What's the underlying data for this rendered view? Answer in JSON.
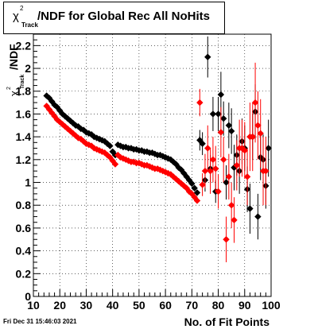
{
  "header": {
    "title_symbol": "χ",
    "title_superscript": "2",
    "title_subscript": "Track",
    "title_text": "/NDF for Global Rec All NoHits"
  },
  "footer": {
    "timestamp": "Fri Dec 31 15:46:03 2021"
  },
  "chart_data": {
    "type": "scatter",
    "title": "χ²_Track/NDF for Global Rec All NoHits",
    "xlabel": "No. of Fit Points",
    "ylabel": "χ²_Track/NDF",
    "ylabel_parts": {
      "symbol": "χ",
      "sup": "2",
      "sub": "Track",
      "rest": "/NDF"
    },
    "xlim": [
      10,
      100
    ],
    "ylim": [
      0,
      2.3
    ],
    "x_ticks": [
      10,
      20,
      30,
      40,
      50,
      60,
      70,
      80,
      90,
      100
    ],
    "y_ticks": [
      0,
      0.2,
      0.4,
      0.6,
      0.8,
      1,
      1.2,
      1.4,
      1.6,
      1.8,
      2,
      2.2
    ],
    "grid": true,
    "legend": "none",
    "series": [
      {
        "color": "#000000",
        "points": [
          {
            "x": 15,
            "y": 1.76,
            "err": 0.01
          },
          {
            "x": 16,
            "y": 1.74,
            "err": 0.01
          },
          {
            "x": 17,
            "y": 1.71,
            "err": 0.01
          },
          {
            "x": 18,
            "y": 1.68,
            "err": 0.01
          },
          {
            "x": 19,
            "y": 1.66,
            "err": 0.01
          },
          {
            "x": 20,
            "y": 1.63,
            "err": 0.01
          },
          {
            "x": 21,
            "y": 1.6,
            "err": 0.01
          },
          {
            "x": 22,
            "y": 1.58,
            "err": 0.01
          },
          {
            "x": 23,
            "y": 1.56,
            "err": 0.01
          },
          {
            "x": 24,
            "y": 1.54,
            "err": 0.01
          },
          {
            "x": 25,
            "y": 1.52,
            "err": 0.01
          },
          {
            "x": 26,
            "y": 1.5,
            "err": 0.01
          },
          {
            "x": 27,
            "y": 1.49,
            "err": 0.01
          },
          {
            "x": 28,
            "y": 1.47,
            "err": 0.01
          },
          {
            "x": 29,
            "y": 1.46,
            "err": 0.01
          },
          {
            "x": 30,
            "y": 1.44,
            "err": 0.01
          },
          {
            "x": 31,
            "y": 1.43,
            "err": 0.01
          },
          {
            "x": 32,
            "y": 1.42,
            "err": 0.01
          },
          {
            "x": 33,
            "y": 1.4,
            "err": 0.01
          },
          {
            "x": 34,
            "y": 1.39,
            "err": 0.01
          },
          {
            "x": 35,
            "y": 1.38,
            "err": 0.01
          },
          {
            "x": 36,
            "y": 1.37,
            "err": 0.01
          },
          {
            "x": 37,
            "y": 1.36,
            "err": 0.01
          },
          {
            "x": 38,
            "y": 1.34,
            "err": 0.01
          },
          {
            "x": 39,
            "y": 1.32,
            "err": 0.01
          },
          {
            "x": 40,
            "y": 1.27,
            "err": 0.01
          },
          {
            "x": 41,
            "y": 1.24,
            "err": 0.01
          },
          {
            "x": 42,
            "y": 1.33,
            "err": 0.01
          },
          {
            "x": 43,
            "y": 1.32,
            "err": 0.01
          },
          {
            "x": 44,
            "y": 1.31,
            "err": 0.01
          },
          {
            "x": 45,
            "y": 1.31,
            "err": 0.01
          },
          {
            "x": 46,
            "y": 1.3,
            "err": 0.01
          },
          {
            "x": 47,
            "y": 1.3,
            "err": 0.01
          },
          {
            "x": 48,
            "y": 1.29,
            "err": 0.01
          },
          {
            "x": 49,
            "y": 1.29,
            "err": 0.01
          },
          {
            "x": 50,
            "y": 1.28,
            "err": 0.01
          },
          {
            "x": 51,
            "y": 1.28,
            "err": 0.01
          },
          {
            "x": 52,
            "y": 1.27,
            "err": 0.01
          },
          {
            "x": 53,
            "y": 1.27,
            "err": 0.01
          },
          {
            "x": 54,
            "y": 1.26,
            "err": 0.01
          },
          {
            "x": 55,
            "y": 1.26,
            "err": 0.01
          },
          {
            "x": 56,
            "y": 1.25,
            "err": 0.01
          },
          {
            "x": 57,
            "y": 1.24,
            "err": 0.01
          },
          {
            "x": 58,
            "y": 1.24,
            "err": 0.01
          },
          {
            "x": 59,
            "y": 1.23,
            "err": 0.01
          },
          {
            "x": 60,
            "y": 1.22,
            "err": 0.01
          },
          {
            "x": 61,
            "y": 1.21,
            "err": 0.01
          },
          {
            "x": 62,
            "y": 1.2,
            "err": 0.01
          },
          {
            "x": 63,
            "y": 1.18,
            "err": 0.01
          },
          {
            "x": 64,
            "y": 1.16,
            "err": 0.01
          },
          {
            "x": 65,
            "y": 1.13,
            "err": 0.01
          },
          {
            "x": 66,
            "y": 1.11,
            "err": 0.01
          },
          {
            "x": 67,
            "y": 1.08,
            "err": 0.01
          },
          {
            "x": 68,
            "y": 1.05,
            "err": 0.01
          },
          {
            "x": 69,
            "y": 1.02,
            "err": 0.015
          },
          {
            "x": 70,
            "y": 0.99,
            "err": 0.015
          },
          {
            "x": 71,
            "y": 0.95,
            "err": 0.02
          },
          {
            "x": 72,
            "y": 0.91,
            "err": 0.02
          },
          {
            "x": 73,
            "y": 1.37,
            "err": 0.09
          },
          {
            "x": 74,
            "y": 1.34,
            "err": 0.1
          },
          {
            "x": 75,
            "y": 1.02,
            "err": 0.1
          },
          {
            "x": 76,
            "y": 2.1,
            "err": 0.18
          },
          {
            "x": 77,
            "y": 1.12,
            "err": 0.12
          },
          {
            "x": 78,
            "y": 1.6,
            "err": 0.15
          },
          {
            "x": 79,
            "y": 0.92,
            "err": 0.1
          },
          {
            "x": 80,
            "y": 1.6,
            "err": 0.15
          },
          {
            "x": 81,
            "y": 1.77,
            "err": 0.2
          },
          {
            "x": 82,
            "y": 1.56,
            "err": 0.15
          },
          {
            "x": 83,
            "y": 1.0,
            "err": 0.15
          },
          {
            "x": 84,
            "y": 1.5,
            "err": 0.2
          },
          {
            "x": 85,
            "y": 1.45,
            "err": 0.2
          },
          {
            "x": 86,
            "y": 1.13,
            "err": 0.2
          },
          {
            "x": 87,
            "y": 1.24,
            "err": 0.18
          },
          {
            "x": 88,
            "y": 1.1,
            "err": 0.2
          },
          {
            "x": 89,
            "y": 1.36,
            "err": 0.2
          },
          {
            "x": 90,
            "y": 1.3,
            "err": 0.2
          },
          {
            "x": 91,
            "y": 0.94,
            "err": 0.2
          },
          {
            "x": 92,
            "y": 0.77,
            "err": 0.22
          },
          {
            "x": 93,
            "y": 1.4,
            "err": 0.2
          },
          {
            "x": 94,
            "y": 1.62,
            "err": 0.24
          },
          {
            "x": 95,
            "y": 0.7,
            "err": 0.2
          },
          {
            "x": 96,
            "y": 1.22,
            "err": 0.2
          },
          {
            "x": 97,
            "y": 1.2,
            "err": 0.22
          },
          {
            "x": 98,
            "y": 0.97,
            "err": 0.2
          },
          {
            "x": 99,
            "y": 1.3,
            "err": 0.25
          }
        ]
      },
      {
        "color": "#ff0000",
        "points": [
          {
            "x": 15,
            "y": 1.67,
            "err": 0.01
          },
          {
            "x": 16,
            "y": 1.64,
            "err": 0.01
          },
          {
            "x": 17,
            "y": 1.61,
            "err": 0.01
          },
          {
            "x": 18,
            "y": 1.58,
            "err": 0.01
          },
          {
            "x": 19,
            "y": 1.55,
            "err": 0.01
          },
          {
            "x": 20,
            "y": 1.53,
            "err": 0.01
          },
          {
            "x": 21,
            "y": 1.51,
            "err": 0.01
          },
          {
            "x": 22,
            "y": 1.49,
            "err": 0.01
          },
          {
            "x": 23,
            "y": 1.47,
            "err": 0.01
          },
          {
            "x": 24,
            "y": 1.45,
            "err": 0.01
          },
          {
            "x": 25,
            "y": 1.43,
            "err": 0.01
          },
          {
            "x": 26,
            "y": 1.41,
            "err": 0.01
          },
          {
            "x": 27,
            "y": 1.39,
            "err": 0.01
          },
          {
            "x": 28,
            "y": 1.38,
            "err": 0.01
          },
          {
            "x": 29,
            "y": 1.36,
            "err": 0.01
          },
          {
            "x": 30,
            "y": 1.34,
            "err": 0.01
          },
          {
            "x": 31,
            "y": 1.33,
            "err": 0.01
          },
          {
            "x": 32,
            "y": 1.32,
            "err": 0.01
          },
          {
            "x": 33,
            "y": 1.3,
            "err": 0.01
          },
          {
            "x": 34,
            "y": 1.29,
            "err": 0.01
          },
          {
            "x": 35,
            "y": 1.28,
            "err": 0.01
          },
          {
            "x": 36,
            "y": 1.27,
            "err": 0.01
          },
          {
            "x": 37,
            "y": 1.26,
            "err": 0.01
          },
          {
            "x": 38,
            "y": 1.24,
            "err": 0.01
          },
          {
            "x": 39,
            "y": 1.22,
            "err": 0.01
          },
          {
            "x": 40,
            "y": 1.19,
            "err": 0.01
          },
          {
            "x": 41,
            "y": 1.16,
            "err": 0.01
          },
          {
            "x": 42,
            "y": 1.24,
            "err": 0.01
          },
          {
            "x": 43,
            "y": 1.22,
            "err": 0.01
          },
          {
            "x": 44,
            "y": 1.21,
            "err": 0.01
          },
          {
            "x": 45,
            "y": 1.2,
            "err": 0.01
          },
          {
            "x": 46,
            "y": 1.19,
            "err": 0.01
          },
          {
            "x": 47,
            "y": 1.18,
            "err": 0.01
          },
          {
            "x": 48,
            "y": 1.18,
            "err": 0.01
          },
          {
            "x": 49,
            "y": 1.17,
            "err": 0.01
          },
          {
            "x": 50,
            "y": 1.17,
            "err": 0.01
          },
          {
            "x": 51,
            "y": 1.16,
            "err": 0.01
          },
          {
            "x": 52,
            "y": 1.15,
            "err": 0.01
          },
          {
            "x": 53,
            "y": 1.15,
            "err": 0.01
          },
          {
            "x": 54,
            "y": 1.14,
            "err": 0.01
          },
          {
            "x": 55,
            "y": 1.13,
            "err": 0.01
          },
          {
            "x": 56,
            "y": 1.12,
            "err": 0.01
          },
          {
            "x": 57,
            "y": 1.12,
            "err": 0.01
          },
          {
            "x": 58,
            "y": 1.11,
            "err": 0.01
          },
          {
            "x": 59,
            "y": 1.1,
            "err": 0.01
          },
          {
            "x": 60,
            "y": 1.09,
            "err": 0.01
          },
          {
            "x": 61,
            "y": 1.08,
            "err": 0.01
          },
          {
            "x": 62,
            "y": 1.07,
            "err": 0.01
          },
          {
            "x": 63,
            "y": 1.05,
            "err": 0.01
          },
          {
            "x": 64,
            "y": 1.03,
            "err": 0.01
          },
          {
            "x": 65,
            "y": 1.01,
            "err": 0.01
          },
          {
            "x": 66,
            "y": 0.99,
            "err": 0.01
          },
          {
            "x": 67,
            "y": 0.97,
            "err": 0.01
          },
          {
            "x": 68,
            "y": 0.95,
            "err": 0.01
          },
          {
            "x": 69,
            "y": 0.92,
            "err": 0.015
          },
          {
            "x": 70,
            "y": 0.9,
            "err": 0.015
          },
          {
            "x": 71,
            "y": 0.87,
            "err": 0.02
          },
          {
            "x": 72,
            "y": 0.84,
            "err": 0.02
          },
          {
            "x": 73,
            "y": 1.7,
            "err": 0.12
          },
          {
            "x": 74,
            "y": 0.98,
            "err": 0.1
          },
          {
            "x": 75,
            "y": 1.1,
            "err": 0.15
          },
          {
            "x": 76,
            "y": 1.3,
            "err": 0.2
          },
          {
            "x": 77,
            "y": 1.1,
            "err": 0.2
          },
          {
            "x": 78,
            "y": 1.2,
            "err": 0.2
          },
          {
            "x": 79,
            "y": 1.12,
            "err": 0.2
          },
          {
            "x": 80,
            "y": 0.92,
            "err": 0.15
          },
          {
            "x": 81,
            "y": 1.44,
            "err": 0.22
          },
          {
            "x": 82,
            "y": 1.2,
            "err": 0.2
          },
          {
            "x": 83,
            "y": 0.5,
            "err": 0.2
          },
          {
            "x": 84,
            "y": 1.05,
            "err": 0.2
          },
          {
            "x": 85,
            "y": 0.8,
            "err": 0.2
          },
          {
            "x": 86,
            "y": 0.67,
            "err": 0.2
          },
          {
            "x": 87,
            "y": 1.15,
            "err": 0.22
          },
          {
            "x": 88,
            "y": 1.3,
            "err": 0.25
          },
          {
            "x": 89,
            "y": 1.3,
            "err": 0.25
          },
          {
            "x": 90,
            "y": 1.28,
            "err": 0.25
          },
          {
            "x": 91,
            "y": 1.05,
            "err": 0.25
          },
          {
            "x": 92,
            "y": 1.4,
            "err": 0.3
          },
          {
            "x": 93,
            "y": 1.4,
            "err": 0.3
          },
          {
            "x": 94,
            "y": 1.7,
            "err": 0.35
          },
          {
            "x": 95,
            "y": 1.5,
            "err": 0.3
          },
          {
            "x": 96,
            "y": 1.43,
            "err": 0.3
          },
          {
            "x": 97,
            "y": 1.1,
            "err": 0.3
          },
          {
            "x": 98,
            "y": 1.1,
            "err": 0.3
          }
        ]
      }
    ]
  }
}
